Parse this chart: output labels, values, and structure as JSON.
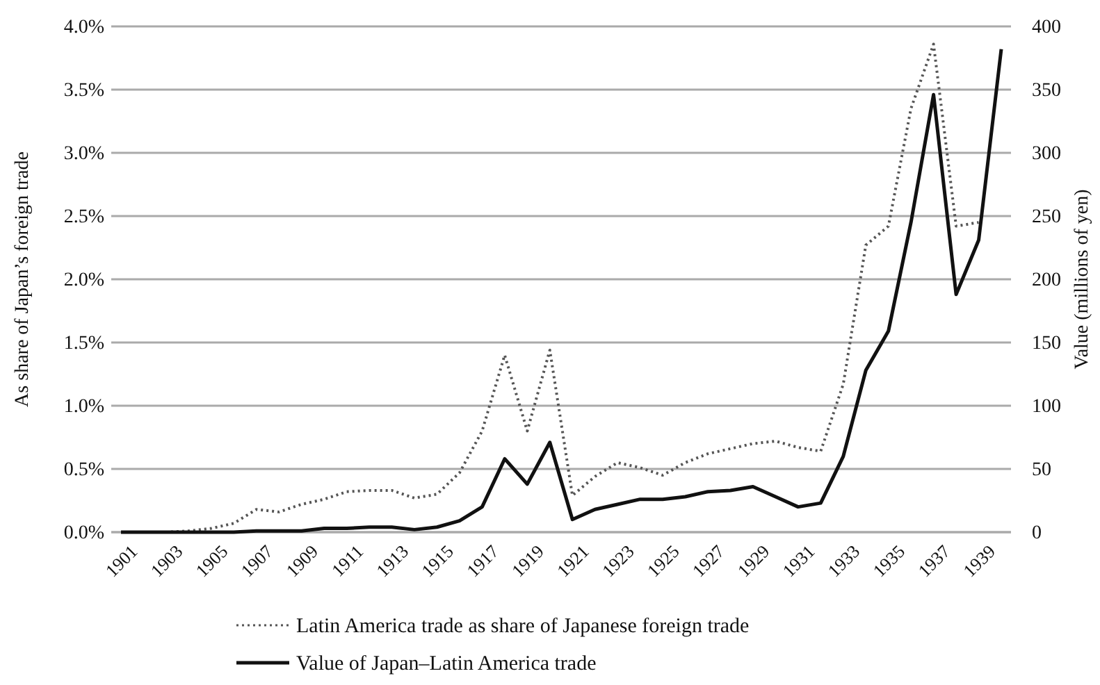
{
  "chart_data": {
    "type": "line",
    "ylabel": "As share of Japan’s foreign trade",
    "y2label": "Value (millions of yen)",
    "categories": [
      "1901",
      null,
      "1903",
      null,
      "1905",
      null,
      "1907",
      null,
      "1909",
      null,
      "1911",
      null,
      "1913",
      null,
      "1915",
      null,
      "1917",
      null,
      "1919",
      null,
      "1921",
      null,
      "1923",
      null,
      "1925",
      null,
      "1927",
      null,
      "1929",
      null,
      "1931",
      null,
      "1933",
      null,
      "1935",
      null,
      "1937",
      null,
      "1939",
      null
    ],
    "series": [
      {
        "name": "Latin America trade as share of Japanese foreign trade",
        "color": "#555555",
        "line_style": "dotted",
        "values": [
          0,
          0,
          0,
          0.01,
          0.03,
          0.07,
          0.18,
          0.16,
          0.22,
          0.26,
          0.32,
          0.33,
          0.33,
          0.27,
          0.3,
          0.47,
          0.8,
          1.4,
          0.8,
          1.44,
          0.29,
          0.44,
          0.55,
          0.51,
          0.45,
          0.55,
          0.62,
          0.66,
          0.7,
          0.72,
          0.67,
          0.64,
          1.17,
          2.27,
          2.42,
          3.35,
          3.86,
          2.42,
          2.45,
          null
        ]
      },
      {
        "name": "Value of Japan–Latin America trade",
        "color": "#111111",
        "line_style": "solid",
        "axis": "y2",
        "values": [
          0,
          0,
          0,
          0,
          0,
          0,
          1,
          1,
          1,
          3,
          3,
          4,
          4,
          2,
          4,
          9,
          20,
          58,
          38,
          71,
          10,
          18,
          22,
          26,
          26,
          28,
          32,
          33,
          36,
          28,
          20,
          23,
          60,
          128,
          159,
          245,
          346,
          188,
          231,
          382
        ]
      }
    ],
    "ylim": [
      0,
      4
    ],
    "yticks": [
      {
        "value": 0,
        "label": "0.0%"
      },
      {
        "value": 0.5,
        "label": "0.5%"
      },
      {
        "value": 1,
        "label": "1.0%"
      },
      {
        "value": 1.5,
        "label": "1.5%"
      },
      {
        "value": 2,
        "label": "2.0%"
      },
      {
        "value": 2.5,
        "label": "2.5%"
      },
      {
        "value": 3,
        "label": "3.0%"
      },
      {
        "value": 3.5,
        "label": "3.5%"
      },
      {
        "value": 4,
        "label": "4.0%"
      }
    ],
    "y2lim": [
      0,
      400
    ],
    "y2ticks": [
      0,
      50,
      100,
      150,
      200,
      250,
      300,
      350,
      400
    ],
    "grid": "y",
    "legend": "bottom",
    "marker": "none"
  }
}
